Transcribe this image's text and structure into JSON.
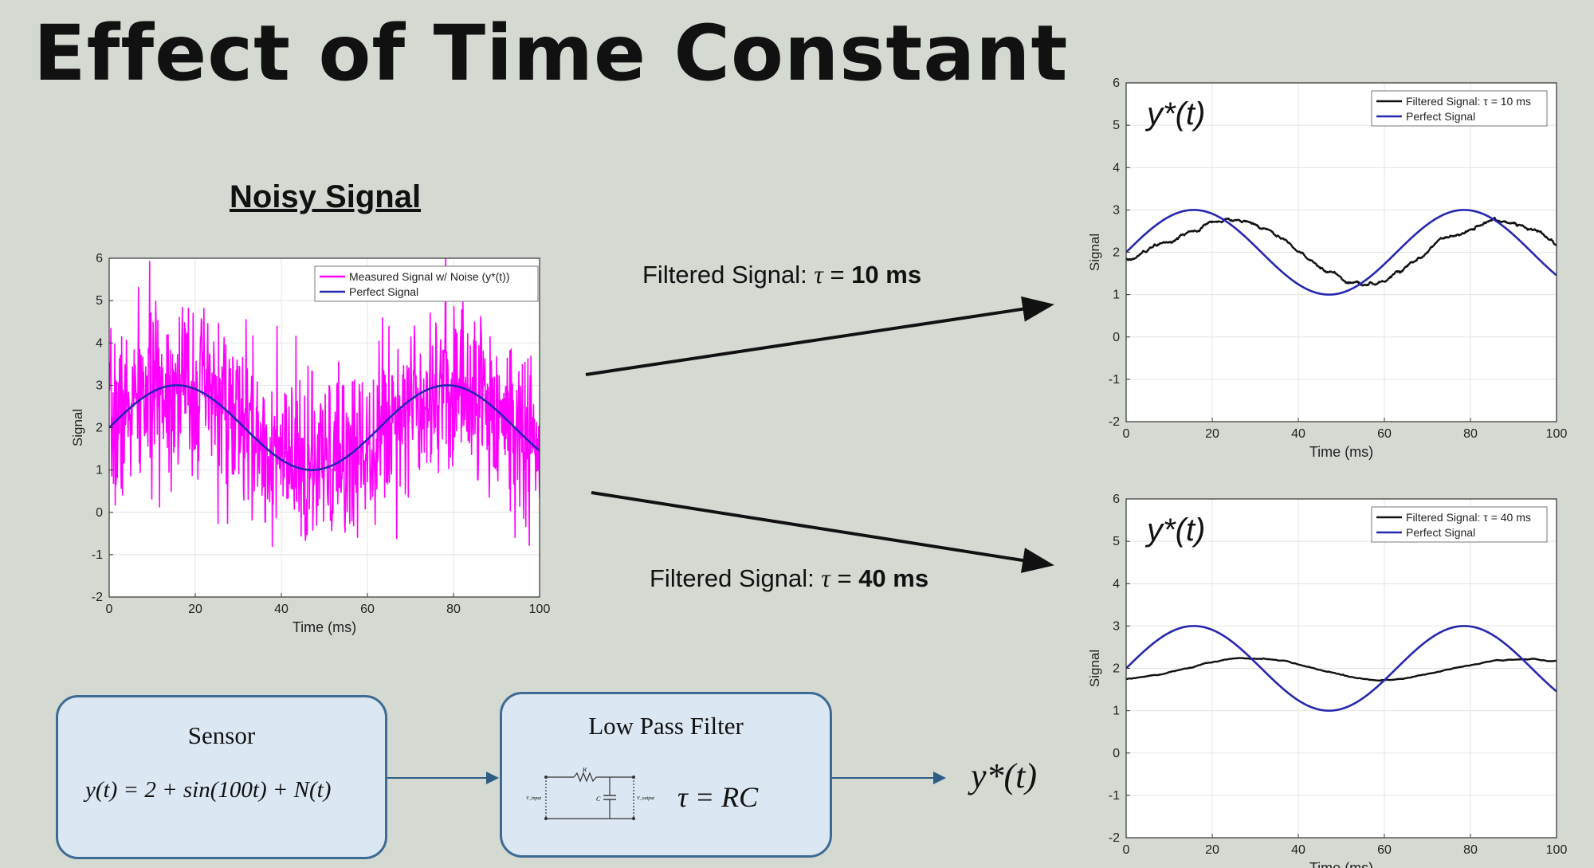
{
  "slide": {
    "title": "Effect of Time Constant",
    "noisy_heading": "Noisy Signal"
  },
  "arrows": {
    "top": {
      "prefix": "Filtered Signal: ",
      "tau": "τ",
      "eq": " = ",
      "value": "10 ms"
    },
    "bottom": {
      "prefix": "Filtered Signal: ",
      "tau": "τ",
      "eq": " = ",
      "value": "40 ms"
    }
  },
  "diagram": {
    "sensor": {
      "title": "Sensor",
      "equation": "y(t) = 2 + sin(100t) + N(t)"
    },
    "filter": {
      "title": "Low Pass Filter",
      "equation": "τ = RC"
    },
    "circuit": {
      "r": "R",
      "c": "C",
      "vin": "V_input",
      "vout": "V_output"
    },
    "output": "y*(t)"
  },
  "chart_data": [
    {
      "id": "noisy",
      "type": "line",
      "title": "",
      "xlabel": "Time (ms)",
      "ylabel": "Signal",
      "xlim": [
        0,
        100
      ],
      "ylim": [
        -2,
        6
      ],
      "xticks": [
        0,
        20,
        40,
        60,
        80,
        100
      ],
      "yticks": [
        -2,
        -1,
        0,
        1,
        2,
        3,
        4,
        5,
        6
      ],
      "grid": true,
      "legend_position": "top-right",
      "series": [
        {
          "name": "Measured Signal w/ Noise (y*(t))",
          "color": "#ff00ff",
          "function": "2 + sin(100t) + N(t)",
          "noise_std": 1.0
        },
        {
          "name": "Perfect Signal",
          "color": "#2626b0",
          "function": "2 + sin(100t)"
        }
      ]
    },
    {
      "id": "filtered10",
      "type": "line",
      "title": "",
      "corner_label": "y*(t)",
      "xlabel": "Time (ms)",
      "ylabel": "Signal",
      "xlim": [
        0,
        100
      ],
      "ylim": [
        -2,
        6
      ],
      "xticks": [
        0,
        20,
        40,
        60,
        80,
        100
      ],
      "yticks": [
        -2,
        -1,
        0,
        1,
        2,
        3,
        4,
        5,
        6
      ],
      "grid": true,
      "legend_position": "top-right",
      "series": [
        {
          "name": "Filtered Signal: τ = 10 ms",
          "color": "#111111",
          "tau_ms": 10
        },
        {
          "name": "Perfect Signal",
          "color": "#2626b0",
          "function": "2 + sin(100t)"
        }
      ]
    },
    {
      "id": "filtered40",
      "type": "line",
      "title": "",
      "corner_label": "y*(t)",
      "xlabel": "Time (ms)",
      "ylabel": "Signal",
      "xlim": [
        0,
        100
      ],
      "ylim": [
        -2,
        6
      ],
      "xticks": [
        0,
        20,
        40,
        60,
        80,
        100
      ],
      "yticks": [
        -2,
        -1,
        0,
        1,
        2,
        3,
        4,
        5,
        6
      ],
      "grid": true,
      "legend_position": "top-right",
      "series": [
        {
          "name": "Filtered Signal: τ = 40 ms",
          "color": "#111111",
          "tau_ms": 40
        },
        {
          "name": "Perfect Signal",
          "color": "#2626b0",
          "function": "2 + sin(100t)"
        }
      ]
    }
  ]
}
